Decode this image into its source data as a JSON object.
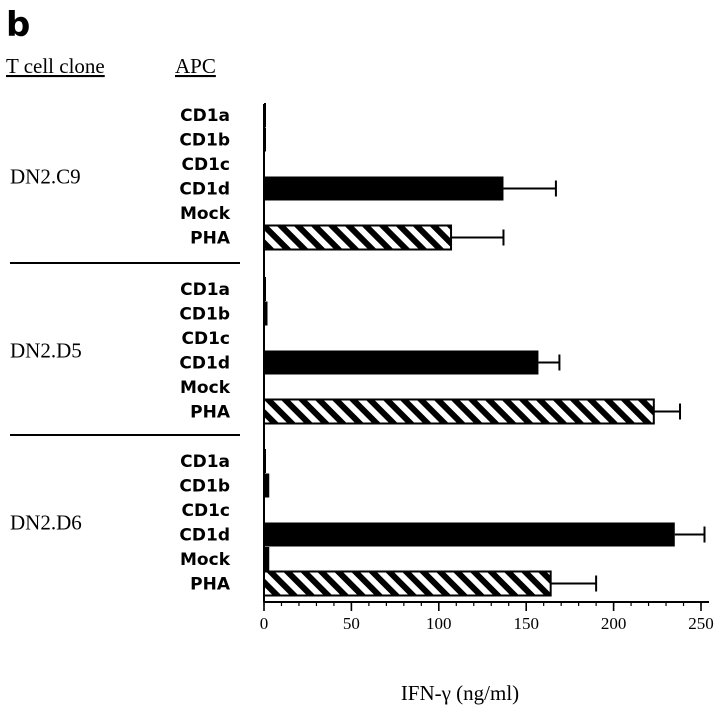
{
  "panel_label": "b",
  "column_headers": {
    "clone": "T cell clone",
    "apc": "APC"
  },
  "chart_data": {
    "type": "bar",
    "orientation": "horizontal",
    "xlabel": "IFN-γ  (ng/ml)",
    "xlim": [
      0,
      250
    ],
    "xticks": [
      0,
      50,
      100,
      150,
      200,
      250
    ],
    "grid": false,
    "groups": [
      {
        "clone": "DN2.C9",
        "bars": [
          {
            "apc": "CD1a",
            "value": 1,
            "error": 0,
            "fill": "solid"
          },
          {
            "apc": "CD1b",
            "value": 1,
            "error": 0,
            "fill": "solid"
          },
          {
            "apc": "CD1c",
            "value": 0,
            "error": 0,
            "fill": "solid"
          },
          {
            "apc": "CD1d",
            "value": 137,
            "error": 30,
            "fill": "solid"
          },
          {
            "apc": "Mock",
            "value": 0,
            "error": 0,
            "fill": "solid"
          },
          {
            "apc": "PHA",
            "value": 107,
            "error": 30,
            "fill": "hatched"
          }
        ]
      },
      {
        "clone": "DN2.D5",
        "bars": [
          {
            "apc": "CD1a",
            "value": 1,
            "error": 0,
            "fill": "solid"
          },
          {
            "apc": "CD1b",
            "value": 2,
            "error": 0,
            "fill": "solid"
          },
          {
            "apc": "CD1c",
            "value": 0,
            "error": 0,
            "fill": "solid"
          },
          {
            "apc": "CD1d",
            "value": 157,
            "error": 12,
            "fill": "solid"
          },
          {
            "apc": "Mock",
            "value": 0,
            "error": 0,
            "fill": "solid"
          },
          {
            "apc": "PHA",
            "value": 223,
            "error": 15,
            "fill": "hatched"
          }
        ]
      },
      {
        "clone": "DN2.D6",
        "bars": [
          {
            "apc": "CD1a",
            "value": 1,
            "error": 0,
            "fill": "solid"
          },
          {
            "apc": "CD1b",
            "value": 3,
            "error": 0,
            "fill": "solid"
          },
          {
            "apc": "CD1c",
            "value": 0,
            "error": 0,
            "fill": "solid"
          },
          {
            "apc": "CD1d",
            "value": 235,
            "error": 17,
            "fill": "solid"
          },
          {
            "apc": "Mock",
            "value": 3,
            "error": 0,
            "fill": "solid"
          },
          {
            "apc": "PHA",
            "value": 164,
            "error": 26,
            "fill": "hatched"
          }
        ]
      }
    ]
  }
}
